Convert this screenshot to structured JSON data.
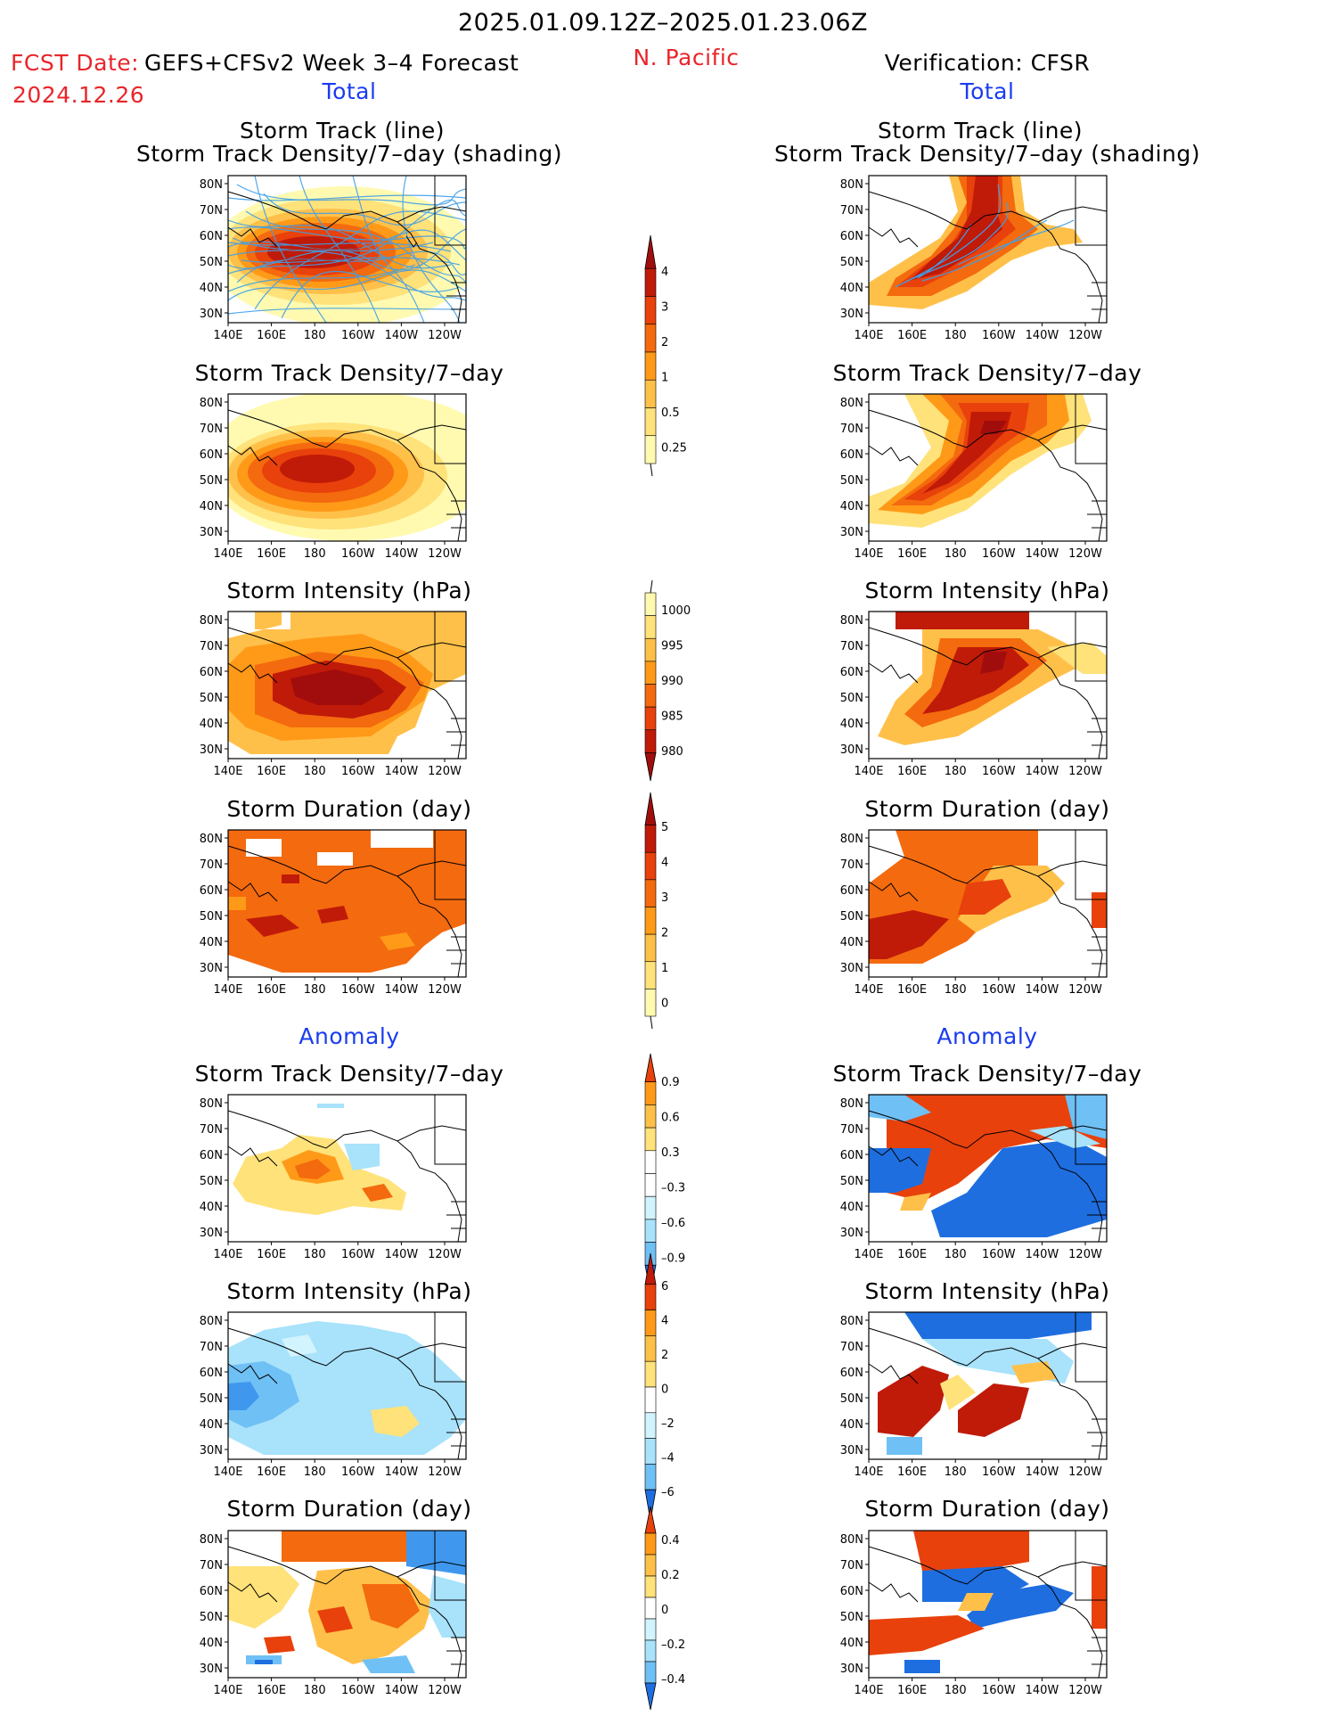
{
  "header": {
    "period": "2025.01.09.12Z–2025.01.23.06Z",
    "fcst_label": "FCST Date:",
    "model": "GEFS+CFSv2 Week 3–4 Forecast",
    "fcst_date": "2024.12.26",
    "region": "N. Pacific",
    "verification": "Verification: CFSR"
  },
  "sections": {
    "total": "Total",
    "anomaly": "Anomaly"
  },
  "panel_titles": {
    "track_line": "Storm Track (line)",
    "track_shading": "Storm Track Density/7–day (shading)",
    "density": "Storm Track Density/7–day",
    "intensity": "Storm Intensity (hPa)",
    "duration": "Storm Duration (day)"
  },
  "axes": {
    "lat_ticks": [
      "80N",
      "70N",
      "60N",
      "50N",
      "40N",
      "30N"
    ],
    "lon_ticks": [
      "140E",
      "160E",
      "180",
      "160W",
      "140W",
      "120W"
    ]
  },
  "colorbars": {
    "density_total": [
      "4",
      "3",
      "2",
      "1",
      "0.5",
      "0.25"
    ],
    "intensity_total": [
      "1000",
      "995",
      "990",
      "985",
      "980"
    ],
    "duration_total": [
      "5",
      "4",
      "3",
      "2",
      "1",
      "0"
    ],
    "density_anom": [
      "0.9",
      "0.6",
      "0.3",
      "–0.3",
      "–0.6",
      "–0.9"
    ],
    "intensity_anom": [
      "6",
      "4",
      "2",
      "0",
      "–2",
      "–4",
      "–6"
    ],
    "duration_anom": [
      "0.4",
      "0.2",
      "0",
      "–0.2",
      "–0.4"
    ]
  },
  "colors": {
    "warm": [
      "#fffab0",
      "#ffe27a",
      "#ffc04a",
      "#ff9a18",
      "#f46a0e",
      "#e8410c",
      "#c01a08",
      "#a00d0c"
    ],
    "cool": [
      "#d2f4ff",
      "#a8e2fb",
      "#6fc0f5",
      "#3f98ee",
      "#1e6ee0",
      "#1a50c8"
    ],
    "track_line": "#3f9fe8",
    "title_red": "#e8262b",
    "title_blue": "#1a3cf0"
  }
}
